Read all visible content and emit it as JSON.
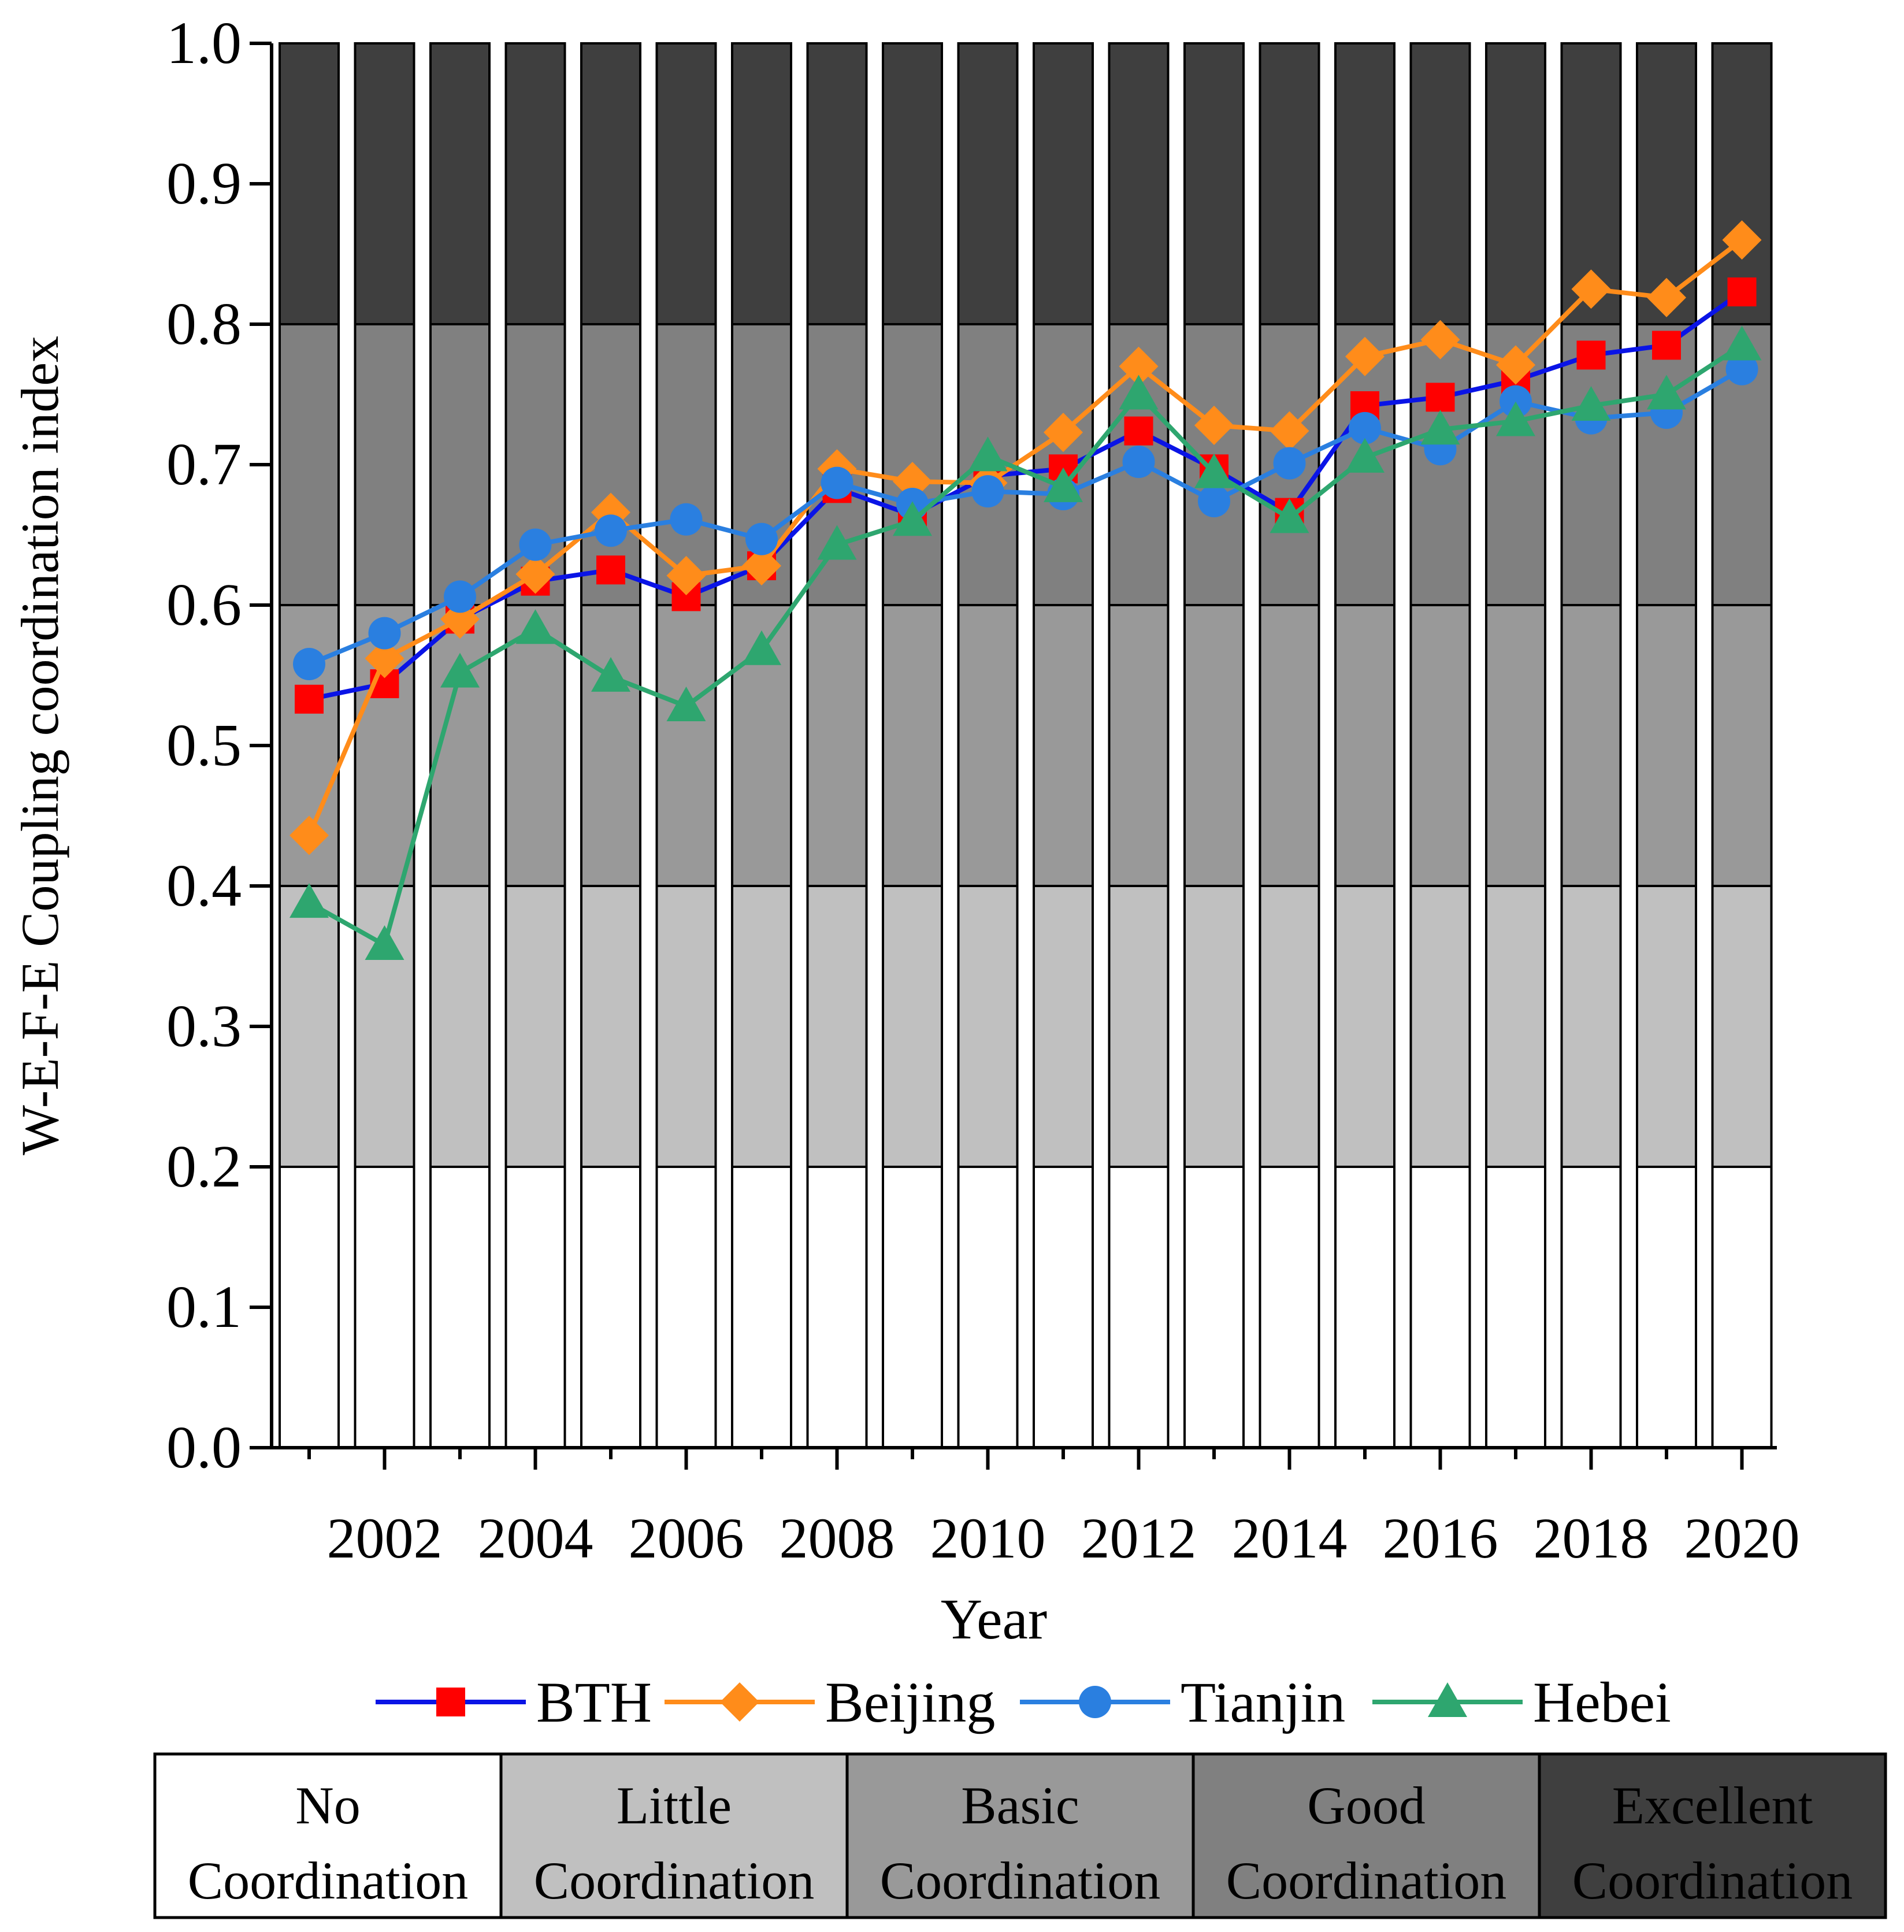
{
  "chart_data": {
    "type": "line",
    "title": "",
    "xlabel": "Year",
    "ylabel": "W-E-F-E Coupling coordination index",
    "x": [
      2001,
      2002,
      2003,
      2004,
      2005,
      2006,
      2007,
      2008,
      2009,
      2010,
      2011,
      2012,
      2013,
      2014,
      2015,
      2016,
      2017,
      2018,
      2019,
      2020
    ],
    "x_tick_labels": [
      "2002",
      "2004",
      "2006",
      "2008",
      "2010",
      "2012",
      "2014",
      "2016",
      "2018",
      "2020"
    ],
    "x_tick_values": [
      2002,
      2004,
      2006,
      2008,
      2010,
      2012,
      2014,
      2016,
      2018,
      2020
    ],
    "y_tick_labels": [
      "0.0",
      "0.1",
      "0.2",
      "0.3",
      "0.4",
      "0.5",
      "0.6",
      "0.7",
      "0.8",
      "0.9",
      "1.0"
    ],
    "ylim": [
      0,
      1.0
    ],
    "grid": false,
    "legend_position": "bottom",
    "series": [
      {
        "name": "BTH",
        "color": "#0a14e6",
        "marker_color": "#ff0000",
        "marker": "square",
        "values": [
          0.533,
          0.544,
          0.59,
          0.617,
          0.625,
          0.606,
          0.628,
          0.683,
          0.664,
          0.692,
          0.697,
          0.724,
          0.697,
          0.666,
          0.742,
          0.748,
          0.76,
          0.778,
          0.785,
          0.823
        ]
      },
      {
        "name": "Beijing",
        "color": "#ff8c1a",
        "marker_color": "#ff8c1a",
        "marker": "diamond",
        "values": [
          0.436,
          0.562,
          0.59,
          0.622,
          0.666,
          0.621,
          0.628,
          0.697,
          0.688,
          0.687,
          0.723,
          0.77,
          0.728,
          0.724,
          0.777,
          0.789,
          0.771,
          0.825,
          0.819,
          0.86
        ]
      },
      {
        "name": "Tianjin",
        "color": "#2a7fe0",
        "marker_color": "#2a7fe0",
        "marker": "circle",
        "values": [
          0.558,
          0.58,
          0.606,
          0.643,
          0.653,
          0.661,
          0.647,
          0.687,
          0.672,
          0.681,
          0.679,
          0.702,
          0.674,
          0.701,
          0.726,
          0.711,
          0.745,
          0.733,
          0.737,
          0.768
        ]
      },
      {
        "name": "Hebei",
        "color": "#2ea66f",
        "marker_color": "#2ea66f",
        "marker": "triangle",
        "values": [
          0.388,
          0.358,
          0.552,
          0.583,
          0.549,
          0.528,
          0.568,
          0.643,
          0.66,
          0.706,
          0.684,
          0.75,
          0.694,
          0.662,
          0.705,
          0.725,
          0.731,
          0.742,
          0.75,
          0.785
        ]
      }
    ],
    "bands": [
      {
        "label_line1": "No",
        "label_line2": "Coordination",
        "range": [
          0.0,
          0.2
        ],
        "color": "#ffffff",
        "text_color": "#000000"
      },
      {
        "label_line1": "Little",
        "label_line2": "Coordination",
        "range": [
          0.2,
          0.4
        ],
        "color": "#c0c0c0",
        "text_color": "#000000"
      },
      {
        "label_line1": "Basic",
        "label_line2": "Coordination",
        "range": [
          0.4,
          0.6
        ],
        "color": "#999999",
        "text_color": "#000000"
      },
      {
        "label_line1": "Good",
        "label_line2": "Coordination",
        "range": [
          0.6,
          0.8
        ],
        "color": "#808080",
        "text_color": "#000000"
      },
      {
        "label_line1": "Excellent",
        "label_line2": "Coordination",
        "range": [
          0.8,
          1.0
        ],
        "color": "#3f3f3f",
        "text_color": "#000000"
      }
    ]
  }
}
